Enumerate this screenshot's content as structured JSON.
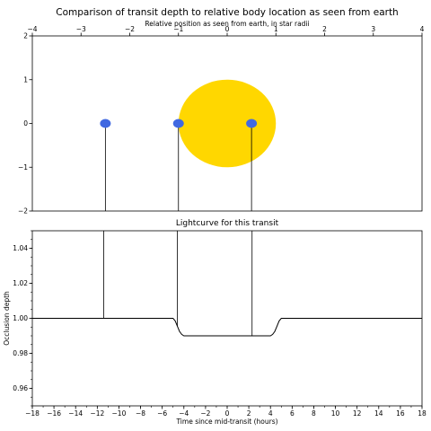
{
  "chart_data": [
    {
      "type": "scatter",
      "title": "Comparison of transit depth to relative body location as seen from earth",
      "xlabel": "Relative position as seen from earth, in star radii",
      "ylabel": "",
      "xlim": [
        -4,
        4
      ],
      "ylim": [
        -2,
        2
      ],
      "x_ticks": [
        "−4",
        "−3",
        "−2",
        "−1",
        "0",
        "1",
        "2",
        "3",
        "4"
      ],
      "y_ticks": [
        "−2",
        "−1",
        "0",
        "1",
        "2"
      ],
      "star": {
        "x": 0,
        "y": 0,
        "radius": 1,
        "color": "#FFD700"
      },
      "planets": [
        {
          "x": -2.5,
          "y": 0,
          "color": "#4169E1"
        },
        {
          "x": -1.0,
          "y": 0,
          "color": "#4169E1"
        },
        {
          "x": 0.5,
          "y": 0,
          "color": "#4169E1"
        }
      ],
      "legend": "none",
      "grid": false
    },
    {
      "type": "line",
      "title": "Lightcurve for this transit",
      "xlabel": "Time since mid-transit (hours)",
      "ylabel": "Occlusion depth",
      "xlim": [
        -18,
        18
      ],
      "ylim": [
        0.95,
        1.05
      ],
      "x_ticks": [
        "−18",
        "−16",
        "−14",
        "−12",
        "−10",
        "−8",
        "−6",
        "−4",
        "−2",
        "0",
        "2",
        "4",
        "6",
        "8",
        "10",
        "12",
        "14",
        "16",
        "18"
      ],
      "y_ticks": [
        "0.96",
        "0.98",
        "1.00",
        "1.02",
        "1.04"
      ],
      "series": [
        {
          "x": [
            -18,
            -5,
            -4.8,
            -4.6,
            -4.4,
            -4.2,
            -4.0,
            4.0,
            4.2,
            4.4,
            4.6,
            4.8,
            5,
            18
          ],
          "y": [
            1.0,
            1.0,
            0.9985,
            0.9955,
            0.9925,
            0.9908,
            0.99,
            0.99,
            0.9908,
            0.9925,
            0.9955,
            0.9985,
            1.0,
            1.0
          ]
        }
      ],
      "markers_x": [
        -11.4,
        -4.6,
        2.3
      ],
      "line_color": "#000000",
      "grid": false
    }
  ]
}
